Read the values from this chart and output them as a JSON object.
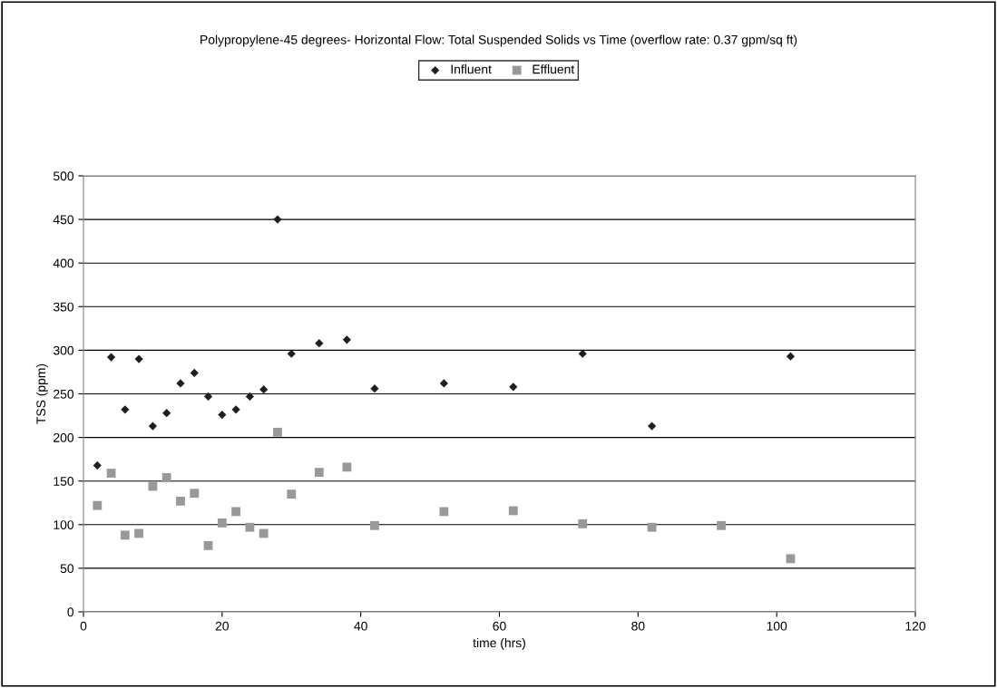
{
  "chart_data": {
    "type": "scatter",
    "title": "Polypropylene-45 degrees- Horizontal Flow: Total Suspended Solids vs Time (overflow rate: 0.37 gpm/sq ft)",
    "xlabel": "time (hrs)",
    "ylabel": "TSS (ppm)",
    "xlim": [
      0,
      120
    ],
    "xticks": [
      0,
      20,
      40,
      60,
      80,
      100,
      120
    ],
    "ylim": [
      0,
      500
    ],
    "yticks": [
      0,
      50,
      100,
      150,
      200,
      250,
      300,
      350,
      400,
      450,
      500
    ],
    "grid": "y",
    "legend": "top",
    "series": [
      {
        "name": "Influent",
        "color": "#1f1f1f",
        "marker": "diamond",
        "x": [
          2,
          4,
          6,
          8,
          10,
          12,
          14,
          16,
          18,
          20,
          22,
          24,
          26,
          28,
          30,
          34,
          38,
          42,
          52,
          62,
          72,
          82,
          102
        ],
        "values": [
          168,
          292,
          232,
          290,
          213,
          228,
          262,
          274,
          247,
          226,
          232,
          247,
          255,
          450,
          296,
          308,
          312,
          256,
          262,
          258,
          296,
          213,
          293
        ]
      },
      {
        "name": "Effluent",
        "color": "#999999",
        "marker": "square",
        "x": [
          2,
          4,
          6,
          8,
          10,
          12,
          14,
          16,
          18,
          20,
          22,
          24,
          26,
          28,
          30,
          34,
          38,
          42,
          52,
          62,
          72,
          82,
          92,
          102
        ],
        "values": [
          122,
          159,
          88,
          90,
          144,
          154,
          127,
          136,
          76,
          102,
          115,
          97,
          90,
          206,
          135,
          160,
          166,
          99,
          115,
          116,
          101,
          97,
          99,
          61
        ]
      }
    ]
  }
}
